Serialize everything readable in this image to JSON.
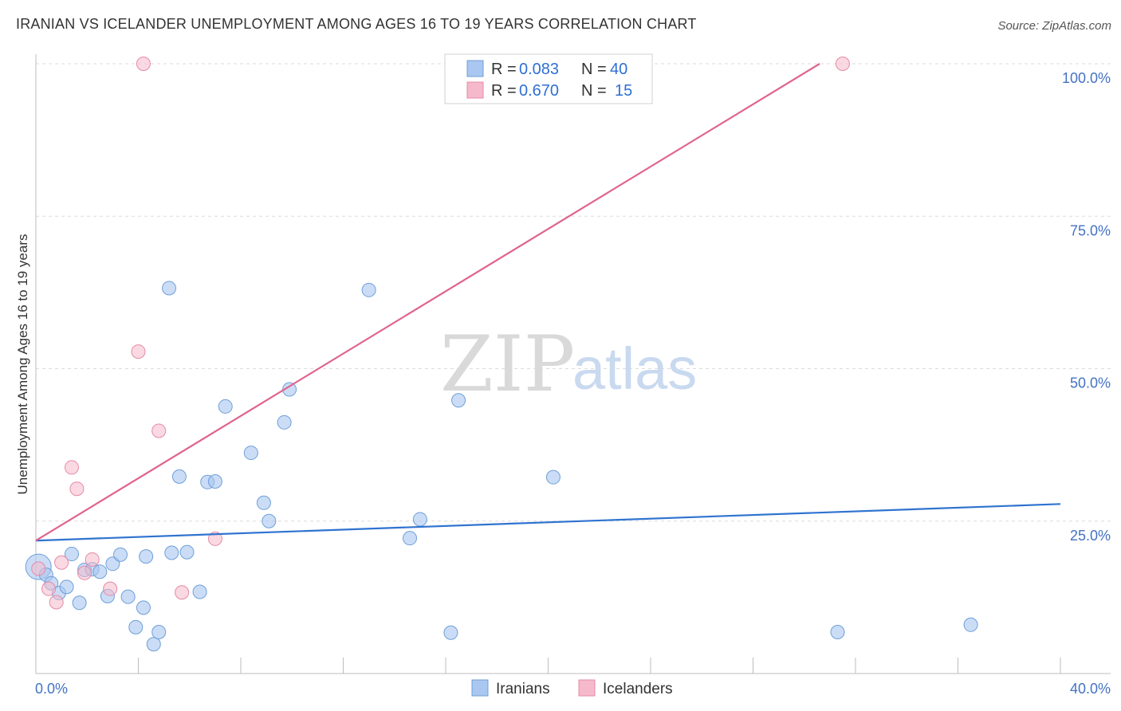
{
  "header": {
    "title": "IRANIAN VS ICELANDER UNEMPLOYMENT AMONG AGES 16 TO 19 YEARS CORRELATION CHART",
    "source": "Source: ZipAtlas.com"
  },
  "watermark": {
    "zip": "ZIP",
    "atlas": "atlas"
  },
  "legend": {
    "r_label": "R =",
    "n_label": "N =",
    "rows": [
      {
        "r": "0.083",
        "n": "40",
        "color": "#a9c7f0"
      },
      {
        "r": "0.670",
        "n": "15",
        "color": "#f6b9cc"
      }
    ]
  },
  "chart_data": {
    "type": "scatter",
    "title": "IRANIAN VS ICELANDER UNEMPLOYMENT AMONG AGES 16 TO 19 YEARS CORRELATION CHART",
    "xlabel": "",
    "ylabel": "Unemployment Among Ages 16 to 19 years",
    "xlim": [
      0,
      40
    ],
    "ylim": [
      0,
      100
    ],
    "x_tick_labels": [
      "0.0%",
      "40.0%"
    ],
    "y_ticks": [
      25,
      50,
      75,
      100
    ],
    "y_tick_labels": [
      "25.0%",
      "50.0%",
      "75.0%",
      "100.0%"
    ],
    "grid": true,
    "series": [
      {
        "name": "Iranians",
        "color": "#a9c7f0",
        "stroke": "#6f9fd8",
        "line_color": "#2f73d0",
        "trend": [
          [
            0,
            21.8
          ],
          [
            40,
            27.8
          ]
        ],
        "points": [
          [
            0.1,
            17.5
          ],
          [
            0.4,
            16.2
          ],
          [
            0.6,
            14.8
          ],
          [
            0.9,
            13.2
          ],
          [
            1.2,
            14.2
          ],
          [
            1.4,
            19.6
          ],
          [
            1.7,
            11.6
          ],
          [
            1.9,
            17.0
          ],
          [
            2.2,
            17.1
          ],
          [
            2.5,
            16.7
          ],
          [
            2.8,
            12.7
          ],
          [
            3.0,
            18.0
          ],
          [
            3.3,
            19.5
          ],
          [
            3.6,
            12.6
          ],
          [
            3.9,
            7.6
          ],
          [
            4.2,
            10.8
          ],
          [
            4.3,
            19.2
          ],
          [
            4.6,
            4.8
          ],
          [
            4.8,
            6.8
          ],
          [
            5.2,
            63.2
          ],
          [
            5.3,
            19.8
          ],
          [
            5.6,
            32.3
          ],
          [
            5.9,
            19.9
          ],
          [
            6.4,
            13.4
          ],
          [
            6.7,
            31.4
          ],
          [
            7.0,
            31.5
          ],
          [
            7.4,
            43.8
          ],
          [
            8.4,
            36.2
          ],
          [
            8.9,
            28.0
          ],
          [
            9.1,
            25.0
          ],
          [
            9.7,
            41.2
          ],
          [
            9.9,
            46.6
          ],
          [
            13.0,
            62.9
          ],
          [
            14.6,
            22.2
          ],
          [
            15.0,
            25.3
          ],
          [
            16.2,
            6.7
          ],
          [
            16.5,
            44.8
          ],
          [
            20.2,
            32.2
          ],
          [
            31.3,
            6.8
          ],
          [
            36.5,
            8.0
          ]
        ]
      },
      {
        "name": "Icelanders",
        "color": "#f6b9cc",
        "stroke": "#e58aa7",
        "line_color": "#e0648c",
        "trend": [
          [
            0,
            21.8
          ],
          [
            30.6,
            100
          ]
        ],
        "points": [
          [
            0.1,
            17.2
          ],
          [
            0.5,
            13.9
          ],
          [
            0.8,
            11.7
          ],
          [
            1.0,
            18.2
          ],
          [
            1.4,
            33.8
          ],
          [
            1.6,
            30.3
          ],
          [
            1.9,
            16.5
          ],
          [
            2.2,
            18.7
          ],
          [
            2.9,
            13.9
          ],
          [
            4.0,
            52.8
          ],
          [
            4.2,
            100.0
          ],
          [
            4.8,
            39.8
          ],
          [
            5.7,
            13.3
          ],
          [
            7.0,
            22.1
          ],
          [
            31.5,
            100.0
          ]
        ]
      }
    ]
  }
}
